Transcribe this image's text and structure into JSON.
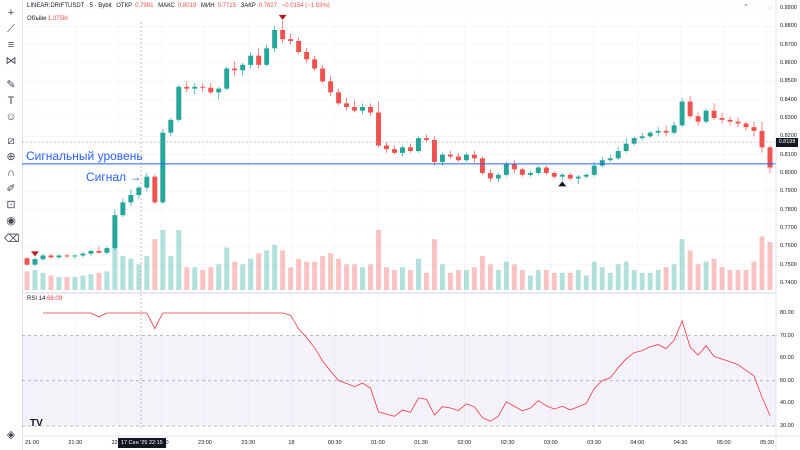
{
  "legend": {
    "symbol": "LINEAR:DRIFTUSDT · 5 · Bybit",
    "open_label": "ОТКР",
    "open_value": "0.7981",
    "high_label": "МАКС",
    "high_value": "0.8019",
    "low_label": "МИН",
    "low_value": "0.7715",
    "close_label": "ЗАКР",
    "close_value": "0.7827",
    "change": "−0.0154 (−1.93%)"
  },
  "volume_label": "Объём",
  "volume_value": "1.375M",
  "rsi_label": "RSI 14",
  "rsi_value": "68.09",
  "annotations": {
    "signal_level": "Сигнальный уровень",
    "signal": "Сигнал →"
  },
  "last_price": "0.8198",
  "crosshair_time": "17 Сен '25   22:15",
  "logo": "TV",
  "icons": [
    "crosshair-icon",
    "trendline-icon",
    "fib-icon",
    "pattern-icon",
    "brush-icon",
    "text-icon",
    "emoji-icon",
    "ruler-icon",
    "zoom-icon",
    "magnet-icon",
    "lock-draw-icon",
    "lock-icon",
    "eye-icon",
    "trash-icon"
  ],
  "colors": {
    "up": "#26a69a",
    "down": "#ef5350",
    "level": "#2962ff",
    "rsi": "#f23645",
    "rsi_band": "#7e57c2"
  },
  "chart_data": {
    "type": "candlestick",
    "price_ticks": [
      "0.8900",
      "0.8800",
      "0.8700",
      "0.8600",
      "0.8500",
      "0.8400",
      "0.8300",
      "0.8200",
      "0.8100",
      "0.8000",
      "0.7900",
      "0.7800",
      "0.7700",
      "0.7600",
      "0.7500",
      "0.7400"
    ],
    "time_ticks": [
      "21:00",
      "21:30",
      "22:00",
      "22:30",
      "23:00",
      "23:30",
      "18",
      "00:30",
      "01:00",
      "01:30",
      "02:00",
      "02:30",
      "03:00",
      "03:30",
      "04:00",
      "04:30",
      "05:00",
      "05:30"
    ],
    "rsi_ticks": [
      "80.00",
      "70.00",
      "60.00",
      "50.00",
      "40.00",
      "30.00"
    ],
    "signal_level_price": 0.805,
    "rsi_bands": [
      70,
      30
    ],
    "candles": [
      [
        0.7535,
        0.754,
        0.7495,
        0.75
      ],
      [
        0.75,
        0.754,
        0.749,
        0.753
      ],
      [
        0.753,
        0.756,
        0.752,
        0.755
      ],
      [
        0.755,
        0.756,
        0.753,
        0.754
      ],
      [
        0.754,
        0.7555,
        0.753,
        0.755
      ],
      [
        0.755,
        0.756,
        0.7535,
        0.7545
      ],
      [
        0.7545,
        0.7555,
        0.753,
        0.755
      ],
      [
        0.755,
        0.757,
        0.754,
        0.756
      ],
      [
        0.756,
        0.758,
        0.7545,
        0.7575
      ],
      [
        0.7575,
        0.76,
        0.756,
        0.7565
      ],
      [
        0.7565,
        0.76,
        0.7555,
        0.759
      ],
      [
        0.759,
        0.78,
        0.758,
        0.777
      ],
      [
        0.777,
        0.786,
        0.776,
        0.784
      ],
      [
        0.784,
        0.791,
        0.782,
        0.788
      ],
      [
        0.788,
        0.793,
        0.786,
        0.792
      ],
      [
        0.792,
        0.8,
        0.79,
        0.798
      ],
      [
        0.798,
        0.799,
        0.783,
        0.784
      ],
      [
        0.784,
        0.824,
        0.783,
        0.822
      ],
      [
        0.822,
        0.83,
        0.82,
        0.829
      ],
      [
        0.829,
        0.848,
        0.828,
        0.847
      ],
      [
        0.847,
        0.85,
        0.844,
        0.846
      ],
      [
        0.846,
        0.849,
        0.843,
        0.847
      ],
      [
        0.847,
        0.849,
        0.844,
        0.8465
      ],
      [
        0.8465,
        0.849,
        0.843,
        0.844
      ],
      [
        0.844,
        0.847,
        0.84,
        0.846
      ],
      [
        0.846,
        0.858,
        0.845,
        0.857
      ],
      [
        0.857,
        0.861,
        0.853,
        0.856
      ],
      [
        0.856,
        0.86,
        0.853,
        0.859
      ],
      [
        0.859,
        0.866,
        0.857,
        0.864
      ],
      [
        0.864,
        0.868,
        0.857,
        0.859
      ],
      [
        0.859,
        0.87,
        0.858,
        0.868
      ],
      [
        0.868,
        0.88,
        0.866,
        0.878
      ],
      [
        0.878,
        0.883,
        0.871,
        0.873
      ],
      [
        0.873,
        0.876,
        0.87,
        0.872
      ],
      [
        0.872,
        0.874,
        0.865,
        0.866
      ],
      [
        0.866,
        0.868,
        0.86,
        0.862
      ],
      [
        0.862,
        0.864,
        0.856,
        0.857
      ],
      [
        0.857,
        0.859,
        0.849,
        0.85
      ],
      [
        0.85,
        0.853,
        0.842,
        0.844
      ],
      [
        0.844,
        0.846,
        0.837,
        0.838
      ],
      [
        0.838,
        0.841,
        0.834,
        0.836
      ],
      [
        0.836,
        0.84,
        0.833,
        0.834
      ],
      [
        0.834,
        0.838,
        0.832,
        0.836
      ],
      [
        0.836,
        0.838,
        0.831,
        0.833
      ],
      [
        0.833,
        0.839,
        0.814,
        0.815
      ],
      [
        0.815,
        0.817,
        0.811,
        0.813
      ],
      [
        0.813,
        0.815,
        0.81,
        0.811
      ],
      [
        0.811,
        0.815,
        0.809,
        0.814
      ],
      [
        0.814,
        0.816,
        0.811,
        0.812
      ],
      [
        0.812,
        0.82,
        0.811,
        0.819
      ],
      [
        0.819,
        0.821,
        0.817,
        0.818
      ],
      [
        0.818,
        0.82,
        0.804,
        0.806
      ],
      [
        0.806,
        0.811,
        0.804,
        0.81
      ],
      [
        0.81,
        0.812,
        0.808,
        0.809
      ],
      [
        0.809,
        0.811,
        0.806,
        0.807
      ],
      [
        0.807,
        0.811,
        0.806,
        0.81
      ],
      [
        0.81,
        0.812,
        0.806,
        0.808
      ],
      [
        0.808,
        0.809,
        0.799,
        0.8
      ],
      [
        0.8,
        0.802,
        0.795,
        0.797
      ],
      [
        0.797,
        0.8,
        0.795,
        0.799
      ],
      [
        0.799,
        0.806,
        0.798,
        0.805
      ],
      [
        0.805,
        0.807,
        0.8,
        0.802
      ],
      [
        0.802,
        0.803,
        0.798,
        0.799
      ],
      [
        0.799,
        0.801,
        0.798,
        0.8
      ],
      [
        0.8,
        0.804,
        0.799,
        0.803
      ],
      [
        0.803,
        0.804,
        0.799,
        0.8
      ],
      [
        0.8,
        0.801,
        0.797,
        0.798
      ],
      [
        0.798,
        0.8,
        0.796,
        0.799
      ],
      [
        0.799,
        0.8,
        0.796,
        0.797
      ],
      [
        0.797,
        0.799,
        0.794,
        0.798
      ],
      [
        0.798,
        0.8,
        0.797,
        0.799
      ],
      [
        0.799,
        0.806,
        0.798,
        0.804
      ],
      [
        0.804,
        0.809,
        0.803,
        0.807
      ],
      [
        0.807,
        0.81,
        0.806,
        0.808
      ],
      [
        0.808,
        0.814,
        0.807,
        0.812
      ],
      [
        0.812,
        0.819,
        0.811,
        0.816
      ],
      [
        0.816,
        0.82,
        0.815,
        0.819
      ],
      [
        0.819,
        0.822,
        0.818,
        0.82
      ],
      [
        0.82,
        0.823,
        0.819,
        0.822
      ],
      [
        0.822,
        0.825,
        0.82,
        0.823
      ],
      [
        0.823,
        0.826,
        0.82,
        0.822
      ],
      [
        0.822,
        0.828,
        0.821,
        0.826
      ],
      [
        0.826,
        0.841,
        0.825,
        0.839
      ],
      [
        0.839,
        0.842,
        0.83,
        0.831
      ],
      [
        0.831,
        0.833,
        0.826,
        0.828
      ],
      [
        0.828,
        0.835,
        0.827,
        0.834
      ],
      [
        0.834,
        0.838,
        0.829,
        0.83
      ],
      [
        0.83,
        0.833,
        0.827,
        0.829
      ],
      [
        0.829,
        0.831,
        0.826,
        0.828
      ],
      [
        0.828,
        0.83,
        0.825,
        0.827
      ],
      [
        0.827,
        0.828,
        0.823,
        0.825
      ],
      [
        0.825,
        0.828,
        0.82,
        0.823
      ],
      [
        0.823,
        0.828,
        0.811,
        0.814
      ],
      [
        0.814,
        0.815,
        0.8,
        0.803
      ]
    ],
    "markers": [
      {
        "index": 1,
        "shape": "arrow-down",
        "color": "#b71c1c"
      },
      {
        "index": 32,
        "shape": "arrow-down",
        "color": "#b71c1c"
      },
      {
        "index": 67,
        "shape": "arrow-up",
        "color": "#131722"
      }
    ]
  }
}
